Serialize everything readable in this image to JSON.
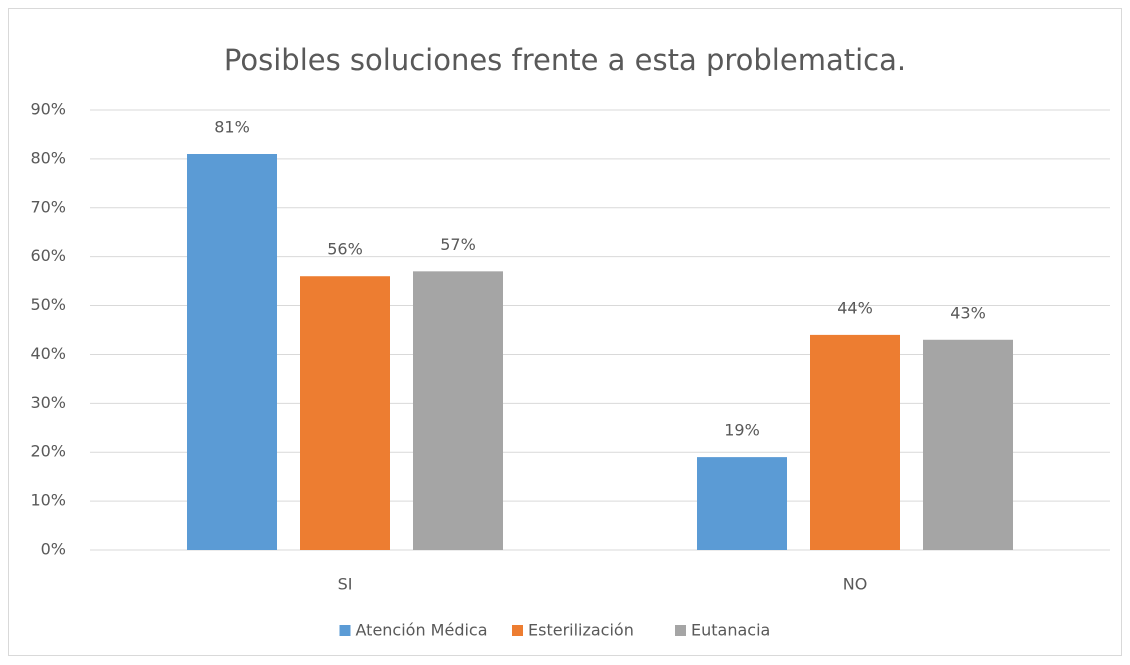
{
  "chart_data": {
    "type": "bar",
    "title": "Posibles soluciones frente a esta problematica.",
    "categories": [
      "SI",
      "NO"
    ],
    "series": [
      {
        "name": "Atención Médica",
        "color": "#5b9bd5",
        "values": [
          81,
          19
        ],
        "value_labels": [
          "81%",
          "19%"
        ]
      },
      {
        "name": "Esterilización",
        "color": "#ed7d31",
        "values": [
          56,
          44
        ],
        "value_labels": [
          "56%",
          "44%"
        ]
      },
      {
        "name": "Eutanacia",
        "color": "#a5a5a5",
        "values": [
          57,
          43
        ],
        "value_labels": [
          "57%",
          "43%"
        ]
      }
    ],
    "ylim": [
      0,
      90
    ],
    "yticks": [
      {
        "value": 0,
        "label": "0%"
      },
      {
        "value": 10,
        "label": "10%"
      },
      {
        "value": 20,
        "label": "20%"
      },
      {
        "value": 30,
        "label": "30%"
      },
      {
        "value": 40,
        "label": "40%"
      },
      {
        "value": 50,
        "label": "50%"
      },
      {
        "value": 60,
        "label": "60%"
      },
      {
        "value": 70,
        "label": "70%"
      },
      {
        "value": 80,
        "label": "80%"
      },
      {
        "value": 90,
        "label": "90%"
      }
    ],
    "grid": true,
    "legend": "bottom"
  }
}
